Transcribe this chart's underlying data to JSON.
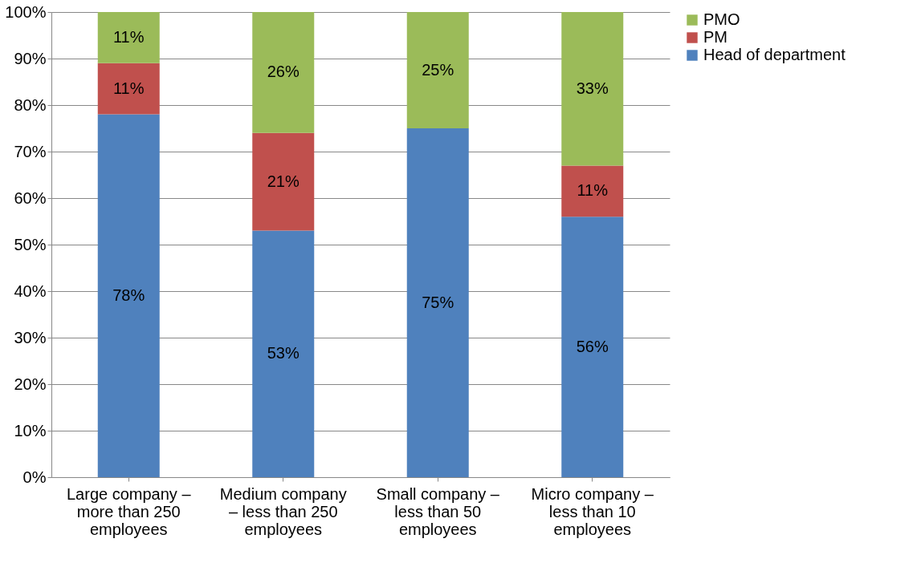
{
  "chart_data": {
    "type": "bar",
    "stacked": true,
    "categories": [
      "Large company – more than 250 employees",
      "Medium company – less than 250 employees",
      "Small company – less than 50 employees",
      "Micro company – less than 10 employees"
    ],
    "series": [
      {
        "name": "Head of department",
        "color": "#4f81bd",
        "values": [
          78,
          53,
          75,
          56
        ],
        "value_labels": [
          "78%",
          "53%",
          "75%",
          "56%"
        ]
      },
      {
        "name": "PM",
        "color": "#c0504d",
        "values": [
          11,
          21,
          null,
          11
        ],
        "value_labels": [
          "11%",
          "21%",
          null,
          "11%"
        ]
      },
      {
        "name": "PMO",
        "color": "#9bbb59",
        "values": [
          11,
          26,
          25,
          33
        ],
        "value_labels": [
          "11%",
          "26%",
          "25%",
          "33%"
        ]
      }
    ],
    "ylim": [
      0,
      100
    ],
    "yticks": [
      {
        "value": 0,
        "label": "0%"
      },
      {
        "value": 10,
        "label": "10%"
      },
      {
        "value": 20,
        "label": "20%"
      },
      {
        "value": 30,
        "label": "30%"
      },
      {
        "value": 40,
        "label": "40%"
      },
      {
        "value": 50,
        "label": "50%"
      },
      {
        "value": 60,
        "label": "60%"
      },
      {
        "value": 70,
        "label": "70%"
      },
      {
        "value": 80,
        "label": "80%"
      },
      {
        "value": 90,
        "label": "90%"
      },
      {
        "value": 100,
        "label": "100%"
      }
    ],
    "grid": "y",
    "legend": "right"
  }
}
